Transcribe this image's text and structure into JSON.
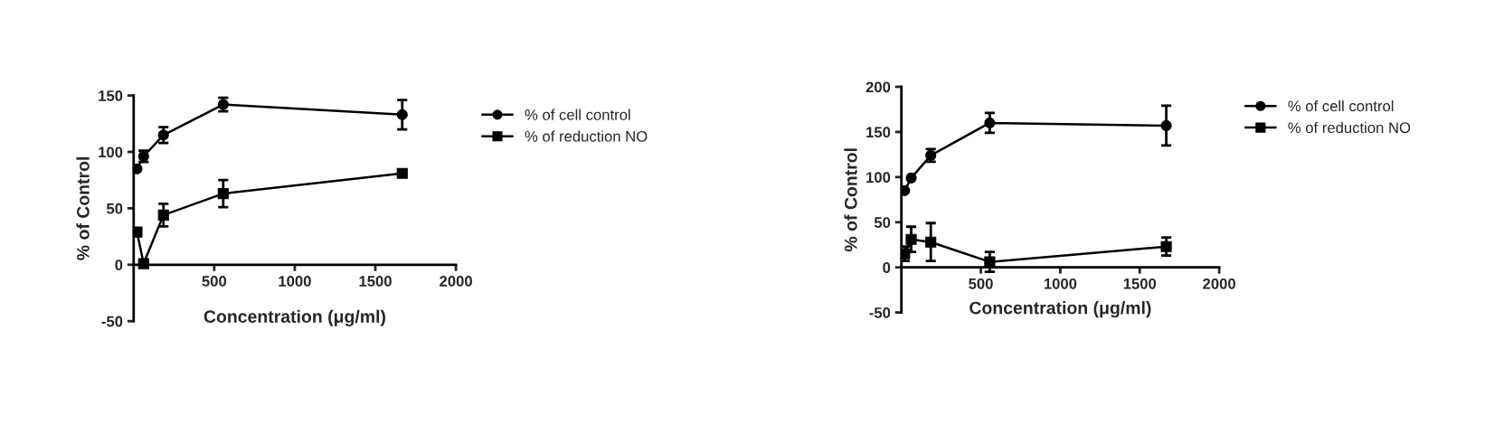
{
  "chart_data": [
    {
      "type": "line",
      "xlabel": "Concentration (μg/ml)",
      "ylabel": "% of Control",
      "x": [
        20.6,
        61.7,
        185,
        556,
        1667
      ],
      "xlim": [
        0,
        2000
      ],
      "xticks": [
        500,
        1000,
        1500,
        2000
      ],
      "ylim": [
        -50,
        150
      ],
      "yticks": [
        -50,
        0,
        50,
        100,
        150
      ],
      "legend": "right",
      "grid": false,
      "line_style": "solid",
      "series": [
        {
          "name": "% of cell control",
          "color": "#000000",
          "marker": "circle",
          "values": [
            85,
            96,
            115,
            142,
            133
          ],
          "errors": [
            null,
            5,
            7,
            6,
            13
          ]
        },
        {
          "name": "% of reduction NO",
          "color": "#000000",
          "marker": "square",
          "values": [
            29,
            1,
            44,
            63,
            81
          ],
          "errors": [
            null,
            null,
            10,
            12,
            null
          ]
        }
      ]
    },
    {
      "type": "line",
      "xlabel": "Concentration (μg/ml)",
      "ylabel": "% of Control",
      "x": [
        20.6,
        61.7,
        185,
        556,
        1667
      ],
      "xlim": [
        0,
        2000
      ],
      "xticks": [
        500,
        1000,
        1500,
        2000
      ],
      "ylim": [
        -50,
        200
      ],
      "yticks": [
        -50,
        0,
        50,
        100,
        150,
        200
      ],
      "legend": "right",
      "grid": false,
      "line_style": "solid",
      "series": [
        {
          "name": "% of cell control",
          "color": "#000000",
          "marker": "circle",
          "values": [
            85,
            99,
            124,
            160,
            157
          ],
          "errors": [
            null,
            null,
            7,
            11,
            22
          ]
        },
        {
          "name": "% of reduction NO",
          "color": "#000000",
          "marker": "square",
          "values": [
            15,
            31,
            28,
            6,
            23
          ],
          "errors": [
            8,
            14,
            21,
            11,
            10
          ]
        }
      ]
    }
  ]
}
